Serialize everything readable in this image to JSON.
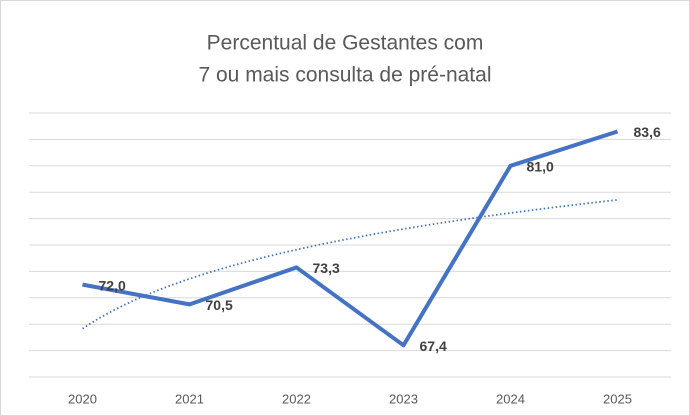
{
  "chart_data": {
    "type": "line",
    "title": [
      "Percentual de Gestantes com",
      "7 ou mais consulta de pré-natal"
    ],
    "categories": [
      "2020",
      "2021",
      "2022",
      "2023",
      "2024",
      "2025"
    ],
    "series": [
      {
        "color": "#4472c4",
        "values": [
          72.0,
          70.5,
          73.3,
          67.4,
          81.0,
          83.6
        ],
        "value_labels": [
          "72,0",
          "70,5",
          "73,3",
          "67,4",
          "81,0",
          "83,6"
        ]
      }
    ],
    "ylim": [
      65,
      85
    ],
    "yticks": [
      65,
      67,
      69,
      71,
      73,
      75,
      77,
      79,
      81,
      83,
      85
    ],
    "grid": true,
    "trendline": "logarithmic"
  }
}
